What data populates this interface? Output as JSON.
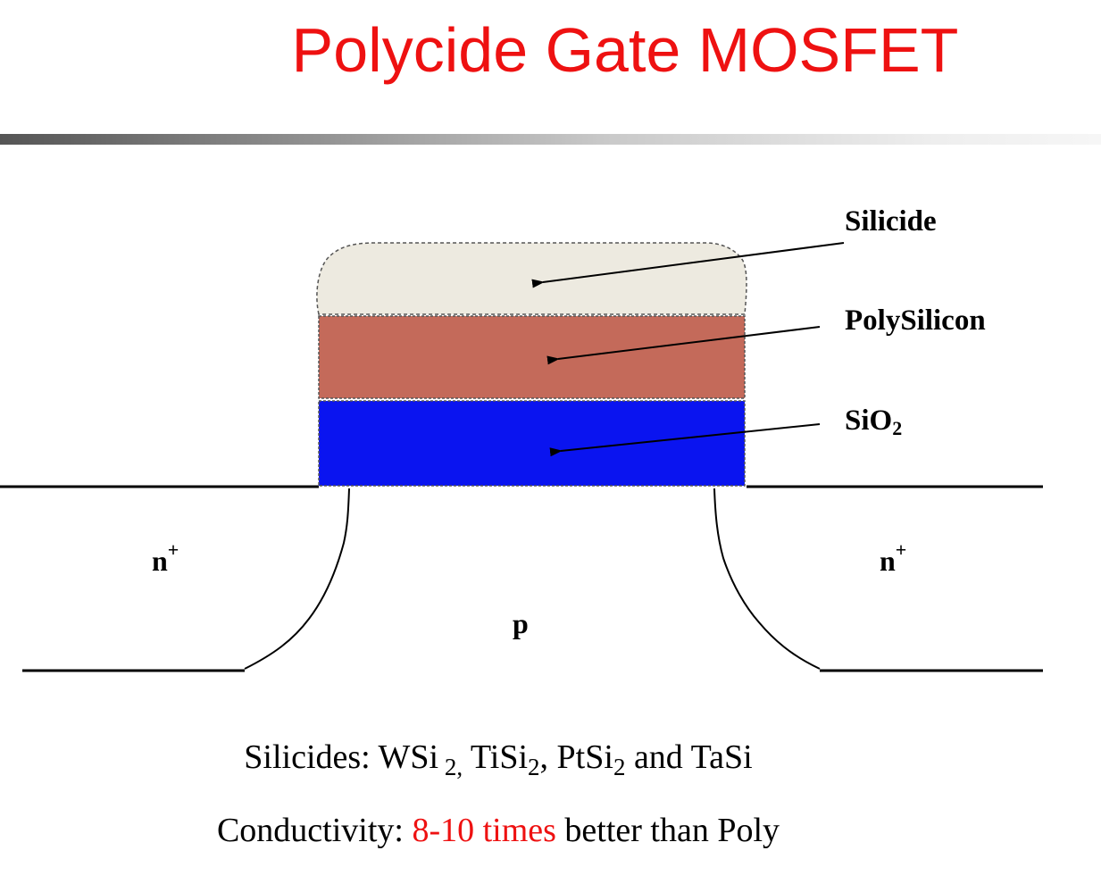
{
  "title": "Polycide Gate MOSFET",
  "labels": {
    "silicide": "Silicide",
    "polysilicon": "PolySilicon",
    "sio2_base": "SiO",
    "sio2_sub": "2"
  },
  "regions": {
    "source": {
      "base": "n",
      "sup": "+"
    },
    "drain": {
      "base": "n",
      "sup": "+"
    },
    "body": "p"
  },
  "colors": {
    "title": "#ee1111",
    "silicide": "#edeae0",
    "polysilicon": "#c46a5a",
    "sio2": "#0a14f0",
    "highlight": "#ee1111"
  },
  "silicides_line": {
    "prefix": "Silicides: WSi",
    "sub1": " 2,",
    "part2": " TiSi",
    "sub2": "2",
    "part3": ", PtSi",
    "sub3": "2",
    "part4": " and TaSi"
  },
  "conductivity_line": {
    "prefix": "Conductivity: ",
    "highlight": "8-10 times",
    "suffix": " better than Poly"
  }
}
